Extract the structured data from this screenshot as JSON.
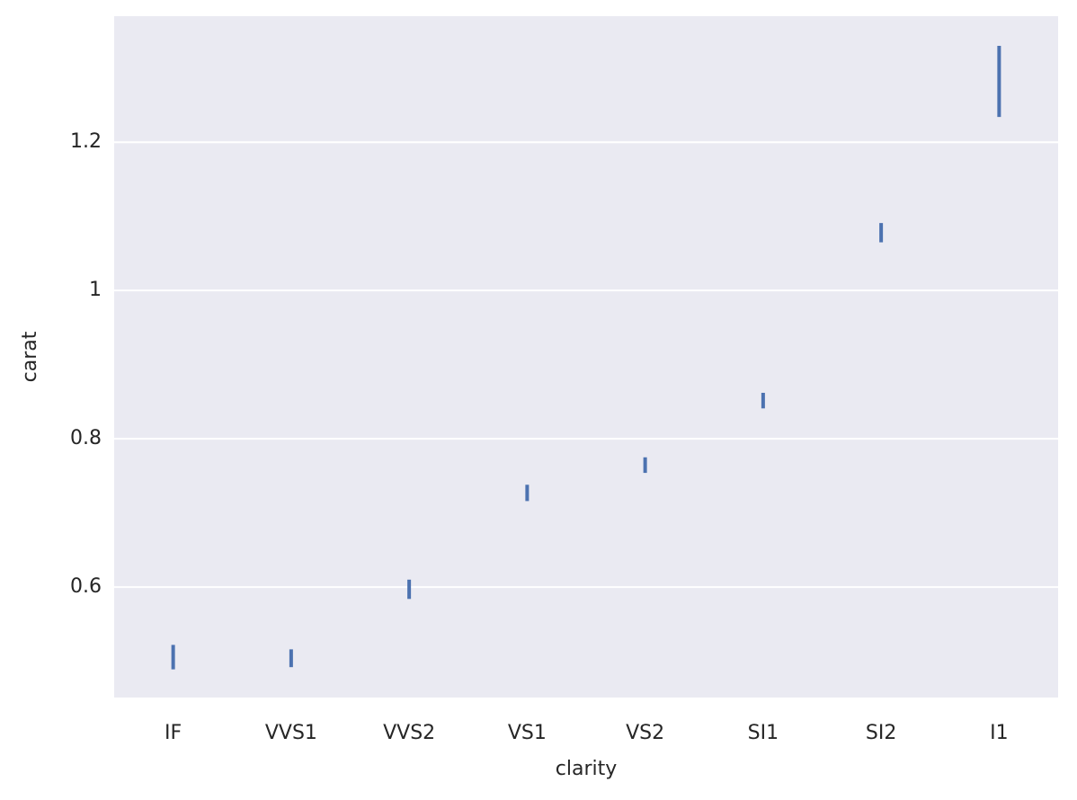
{
  "chart_data": {
    "type": "errorbar",
    "xlabel": "clarity",
    "ylabel": "carat",
    "categories": [
      "IF",
      "VVS1",
      "VVS2",
      "VS1",
      "VS2",
      "SI1",
      "SI2",
      "I1"
    ],
    "series": [
      {
        "color": "#4c72b0",
        "low": [
          0.489,
          0.492,
          0.584,
          0.716,
          0.754,
          0.841,
          1.065,
          1.234
        ],
        "high": [
          0.522,
          0.516,
          0.61,
          0.738,
          0.775,
          0.862,
          1.091,
          1.33
        ]
      }
    ],
    "ylim": [
      0.451,
      1.37
    ],
    "yticks": [
      0.6,
      0.8,
      1.0,
      1.2
    ],
    "grid": true
  }
}
